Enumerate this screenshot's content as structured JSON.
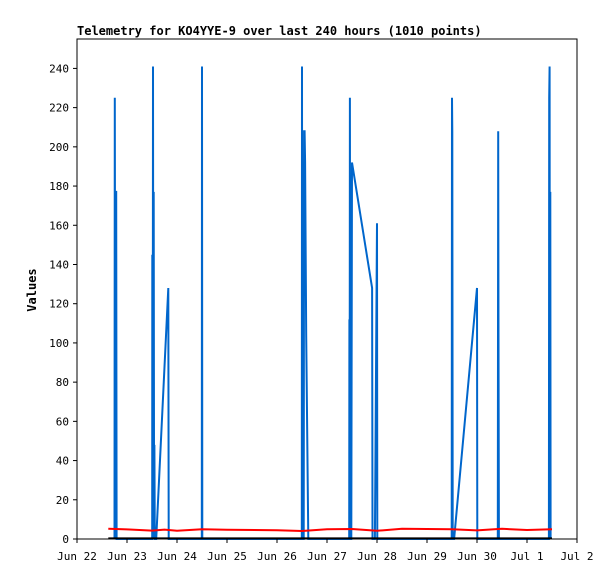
{
  "chart_data": {
    "type": "line",
    "title": "Telemetry for KO4YYE-9 over last 240 hours (1010 points)",
    "xlabel": "",
    "ylabel": "Values",
    "ylim": [
      0,
      255
    ],
    "yticks": [
      0,
      20,
      40,
      60,
      80,
      100,
      120,
      140,
      160,
      180,
      200,
      220,
      240
    ],
    "xlim": [
      "2024-06-22",
      "2024-07-02"
    ],
    "xticks": [
      {
        "date": "2024-06-22",
        "label": "Jun 22"
      },
      {
        "date": "2024-06-23",
        "label": "Jun 23"
      },
      {
        "date": "2024-06-24",
        "label": "Jun 24"
      },
      {
        "date": "2024-06-25",
        "label": "Jun 25"
      },
      {
        "date": "2024-06-26",
        "label": "Jun 26"
      },
      {
        "date": "2024-06-27",
        "label": "Jun 27"
      },
      {
        "date": "2024-06-28",
        "label": "Jun 28"
      },
      {
        "date": "2024-06-29",
        "label": "Jun 29"
      },
      {
        "date": "2024-06-30",
        "label": "Jun 30"
      },
      {
        "date": "2024-07-01",
        "label": "Jul 1"
      },
      {
        "date": "2024-07-02",
        "label": "Jul 2"
      }
    ],
    "grid": false,
    "legend": "none",
    "series": [
      {
        "color": "#0066cc",
        "points": [
          [
            "2024-06-22T18:00",
            0
          ],
          [
            "2024-06-22T18:10",
            225
          ],
          [
            "2024-06-22T18:25",
            0
          ],
          [
            "2024-06-22T18:35",
            177
          ],
          [
            "2024-06-22T18:50",
            177
          ],
          [
            "2024-06-22T19:00",
            0
          ],
          [
            "2024-06-23T12:05",
            0
          ],
          [
            "2024-06-23T12:10",
            145
          ],
          [
            "2024-06-23T12:20",
            0
          ],
          [
            "2024-06-23T12:30",
            241
          ],
          [
            "2024-06-23T12:40",
            0
          ],
          [
            "2024-06-23T12:50",
            177
          ],
          [
            "2024-06-23T13:00",
            0
          ],
          [
            "2024-06-23T13:10",
            48
          ],
          [
            "2024-06-23T13:20",
            0
          ],
          [
            "2024-06-23T14:00",
            0
          ],
          [
            "2024-06-23T19:50",
            128
          ],
          [
            "2024-06-23T20:00",
            0
          ],
          [
            "2024-06-24T11:55",
            0
          ],
          [
            "2024-06-24T12:00",
            241
          ],
          [
            "2024-06-24T12:10",
            0
          ],
          [
            "2024-06-26T11:55",
            0
          ],
          [
            "2024-06-26T12:00",
            241
          ],
          [
            "2024-06-26T12:10",
            0
          ],
          [
            "2024-06-26T12:50",
            0
          ],
          [
            "2024-06-26T13:00",
            208
          ],
          [
            "2024-06-26T13:15",
            208
          ],
          [
            "2024-06-26T13:30",
            192
          ],
          [
            "2024-06-26T14:00",
            104
          ],
          [
            "2024-06-26T15:00",
            0
          ],
          [
            "2024-06-27T10:40",
            0
          ],
          [
            "2024-06-27T10:45",
            112
          ],
          [
            "2024-06-27T10:50",
            0
          ],
          [
            "2024-06-27T11:00",
            225
          ],
          [
            "2024-06-27T11:10",
            0
          ],
          [
            "2024-06-27T11:40",
            0
          ],
          [
            "2024-06-27T12:00",
            192
          ],
          [
            "2024-06-27T21:40",
            128
          ],
          [
            "2024-06-27T21:50",
            0
          ],
          [
            "2024-06-27T23:00",
            0
          ],
          [
            "2024-06-28T00:00",
            161
          ],
          [
            "2024-06-28T00:10",
            0
          ],
          [
            "2024-06-29T11:50",
            0
          ],
          [
            "2024-06-29T12:00",
            225
          ],
          [
            "2024-06-29T12:10",
            208
          ],
          [
            "2024-06-29T12:20",
            0
          ],
          [
            "2024-06-29T13:00",
            0
          ],
          [
            "2024-06-30T00:00",
            128
          ],
          [
            "2024-06-30T00:10",
            0
          ],
          [
            "2024-06-30T10:00",
            0
          ],
          [
            "2024-06-30T10:10",
            208
          ],
          [
            "2024-06-30T10:20",
            104
          ],
          [
            "2024-06-30T10:30",
            0
          ],
          [
            "2024-07-01T10:30",
            0
          ],
          [
            "2024-07-01T10:40",
            225
          ],
          [
            "2024-07-01T10:50",
            241
          ],
          [
            "2024-07-01T11:00",
            0
          ],
          [
            "2024-07-01T11:10",
            177
          ],
          [
            "2024-07-01T11:20",
            0
          ]
        ]
      },
      {
        "color": "#ff0000",
        "points": [
          [
            "2024-06-22T15:00",
            5.2
          ],
          [
            "2024-06-23T00:00",
            4.9
          ],
          [
            "2024-06-23T12:00",
            4.3
          ],
          [
            "2024-06-23T18:00",
            4.8
          ],
          [
            "2024-06-24T00:00",
            4.2
          ],
          [
            "2024-06-24T06:00",
            4.6
          ],
          [
            "2024-06-24T12:00",
            5.0
          ],
          [
            "2024-06-25T00:00",
            4.7
          ],
          [
            "2024-06-26T00:00",
            4.5
          ],
          [
            "2024-06-26T12:00",
            4.1
          ],
          [
            "2024-06-27T00:00",
            5.0
          ],
          [
            "2024-06-27T12:00",
            5.1
          ],
          [
            "2024-06-28T00:00",
            4.2
          ],
          [
            "2024-06-28T12:00",
            5.2
          ],
          [
            "2024-06-29T12:00",
            5.0
          ],
          [
            "2024-06-30T00:00",
            4.4
          ],
          [
            "2024-06-30T12:00",
            5.2
          ],
          [
            "2024-07-01T00:00",
            4.6
          ],
          [
            "2024-07-01T12:00",
            5.0
          ]
        ]
      },
      {
        "color": "#000000",
        "points": [
          [
            "2024-06-22T15:00",
            0.3
          ],
          [
            "2024-07-01T12:00",
            0.3
          ]
        ]
      }
    ]
  }
}
